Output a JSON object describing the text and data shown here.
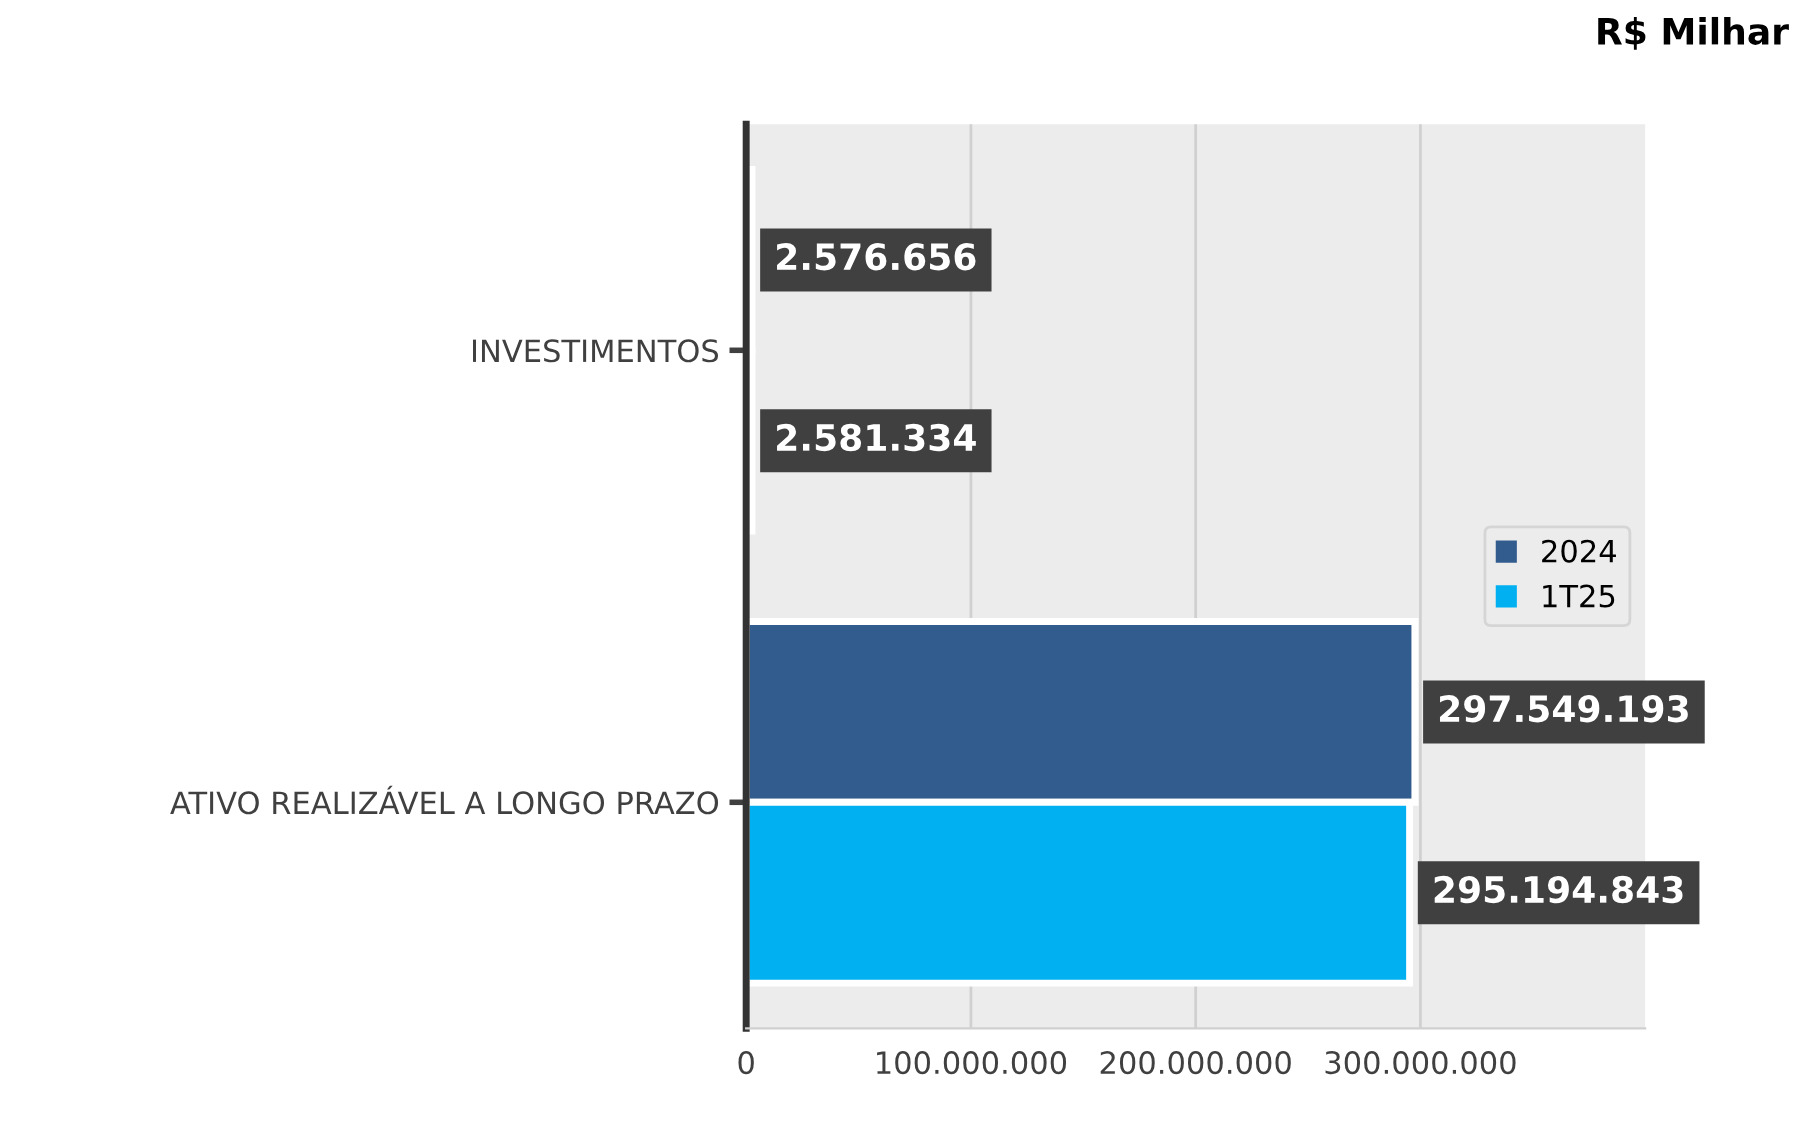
{
  "chart_data": {
    "type": "bar",
    "orientation": "horizontal",
    "title": "R$ Milhar",
    "categories": [
      "INVESTIMENTOS",
      "ATIVO REALIZÁVEL A LONGO PRAZO"
    ],
    "series": [
      {
        "name": "2024",
        "color": "#335c8e",
        "values": [
          2576656,
          297549193
        ],
        "value_labels": [
          "2.576.656",
          "297.549.193"
        ]
      },
      {
        "name": "1T25",
        "color": "#00b0f0",
        "values": [
          2581334,
          295194843
        ],
        "value_labels": [
          "2.581.334",
          "295.194.843"
        ]
      }
    ],
    "xlim": [
      0,
      400000000
    ],
    "xticks": [
      0,
      {
        "value": 100000000,
        "label": "100.000.000"
      },
      {
        "value": 200000000,
        "label": "200.000.000"
      },
      {
        "value": 300000000,
        "label": "300.000.000"
      }
    ],
    "grid": "x",
    "legend": "right"
  }
}
